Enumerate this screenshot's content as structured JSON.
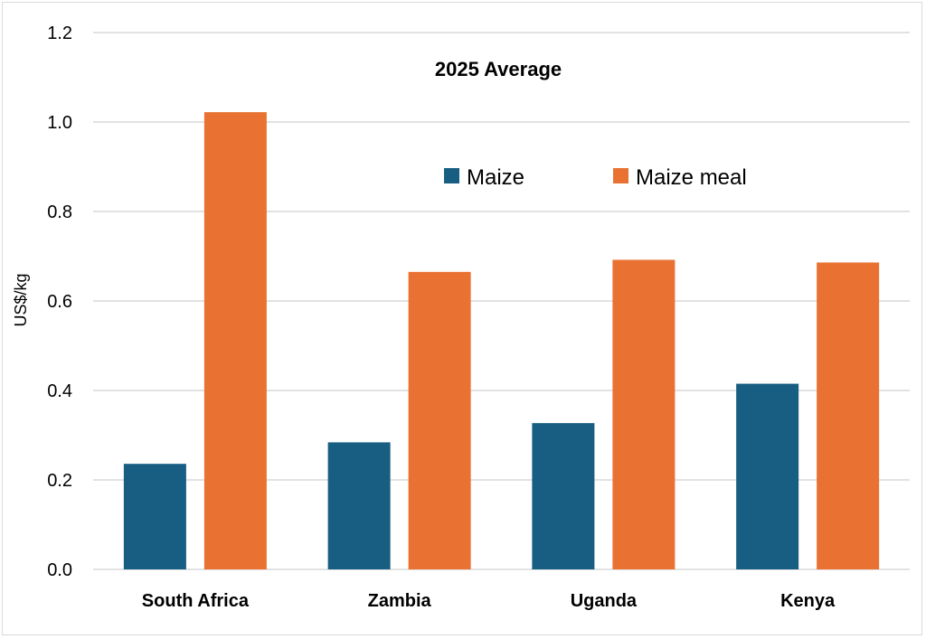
{
  "chart_data": {
    "type": "bar",
    "title": "2025 Average",
    "xlabel": "",
    "ylabel": "US$/kg",
    "ylim": [
      0,
      1.2
    ],
    "yticks": [
      "0.0",
      "0.2",
      "0.4",
      "0.6",
      "0.8",
      "1.0",
      "1.2"
    ],
    "grid": true,
    "legend_position": "top-center",
    "categories": [
      "South Africa",
      "Zambia",
      "Uganda",
      "Kenya"
    ],
    "series": [
      {
        "name": "Maize",
        "color": "#175e82",
        "values": [
          0.236,
          0.284,
          0.327,
          0.415
        ]
      },
      {
        "name": "Maize meal",
        "color": "#e97233",
        "values": [
          1.022,
          0.665,
          0.692,
          0.686
        ]
      }
    ]
  }
}
